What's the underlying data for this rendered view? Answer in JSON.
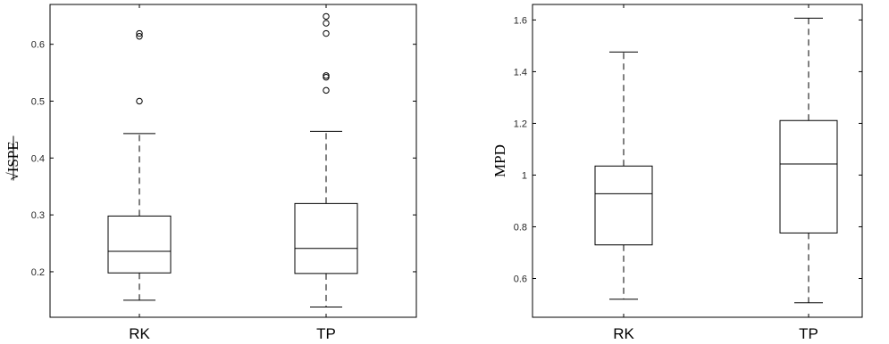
{
  "chart_data": [
    {
      "type": "box",
      "title": "",
      "xlabel": "",
      "ylabel": "√ISPE",
      "ylim": [
        0.12,
        0.67
      ],
      "yticks": [
        0.2,
        0.3,
        0.4,
        0.5,
        0.6
      ],
      "ytick_labels": [
        "0.2",
        "0.3",
        "0.4",
        "0.5",
        "0.6"
      ],
      "grid": false,
      "categories": [
        "RK",
        "TP"
      ],
      "boxes": [
        {
          "q1": 0.198,
          "median": 0.236,
          "q3": 0.298,
          "whisker_low": 0.15,
          "whisker_high": 0.443,
          "outliers": [
            0.5,
            0.614,
            0.619
          ]
        },
        {
          "q1": 0.197,
          "median": 0.241,
          "q3": 0.32,
          "whisker_low": 0.138,
          "whisker_high": 0.447,
          "outliers": [
            0.519,
            0.542,
            0.545,
            0.619,
            0.637,
            0.649
          ]
        }
      ]
    },
    {
      "type": "box",
      "title": "",
      "xlabel": "",
      "ylabel": "MPD",
      "ylim": [
        0.45,
        1.66
      ],
      "yticks": [
        0.6,
        0.8,
        1.0,
        1.2,
        1.4,
        1.6
      ],
      "ytick_labels": [
        "0.6",
        "0.8",
        "1",
        "1.2",
        "1.4",
        "1.6"
      ],
      "grid": false,
      "categories": [
        "RK",
        "TP"
      ],
      "boxes": [
        {
          "q1": 0.73,
          "median": 0.928,
          "q3": 1.035,
          "whisker_low": 0.52,
          "whisker_high": 1.476,
          "outliers": []
        },
        {
          "q1": 0.776,
          "median": 1.043,
          "q3": 1.211,
          "whisker_low": 0.506,
          "whisker_high": 1.607,
          "outliers": []
        }
      ]
    }
  ]
}
